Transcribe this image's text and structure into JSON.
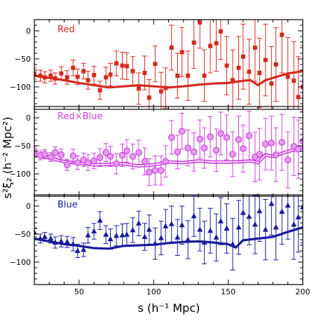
{
  "chart_data": {
    "type": "scatter",
    "xlabel": "s (h⁻¹ Mpc)",
    "ylabel": "s²ξ₂ (h⁻² Mpc²)",
    "xlim": [
      20,
      200
    ],
    "x_ticks": [
      50,
      100,
      150,
      200
    ],
    "panels": [
      {
        "label": "Red",
        "color": "#d42a1e",
        "marker": "square",
        "ylim": [
          -140,
          20
        ],
        "y_ticks": [
          0,
          -50,
          -100
        ],
        "model_style": "thick",
        "model": [
          [
            20,
            -80
          ],
          [
            30,
            -84
          ],
          [
            40,
            -88
          ],
          [
            50,
            -93
          ],
          [
            60,
            -97
          ],
          [
            70,
            -101
          ],
          [
            80,
            -99
          ],
          [
            90,
            -97
          ],
          [
            100,
            -99
          ],
          [
            110,
            -101
          ],
          [
            120,
            -99
          ],
          [
            130,
            -96
          ],
          [
            140,
            -94
          ],
          [
            150,
            -93
          ],
          [
            160,
            -89
          ],
          [
            165,
            -88
          ],
          [
            170,
            -97
          ],
          [
            175,
            -88
          ],
          [
            180,
            -84
          ],
          [
            190,
            -76
          ],
          [
            200,
            -72
          ]
        ],
        "points": [
          [
            20,
            -76,
            10
          ],
          [
            24,
            -80,
            10
          ],
          [
            27,
            -83,
            10
          ],
          [
            31,
            -80,
            10
          ],
          [
            34,
            -85,
            10
          ],
          [
            38,
            -76,
            12
          ],
          [
            42,
            -83,
            12
          ],
          [
            46,
            -66,
            14
          ],
          [
            49,
            -82,
            14
          ],
          [
            53,
            -72,
            14
          ],
          [
            56,
            -88,
            16
          ],
          [
            60,
            -79,
            16
          ],
          [
            64,
            -106,
            16
          ],
          [
            68,
            -83,
            18
          ],
          [
            71,
            -78,
            20
          ],
          [
            75,
            -58,
            22
          ],
          [
            79,
            -62,
            24
          ],
          [
            82,
            -63,
            24
          ],
          [
            86,
            -72,
            26
          ],
          [
            90,
            -103,
            28
          ],
          [
            94,
            -75,
            30
          ],
          [
            97,
            -119,
            32
          ],
          [
            101,
            -59,
            32
          ],
          [
            105,
            -108,
            34
          ],
          [
            108,
            -102,
            36
          ],
          [
            112,
            -30,
            40
          ],
          [
            116,
            -80,
            40
          ],
          [
            119,
            -38,
            44
          ],
          [
            123,
            -80,
            44
          ],
          [
            127,
            -21,
            46
          ],
          [
            131,
            15,
            46
          ],
          [
            134,
            -80,
            46
          ],
          [
            138,
            -27,
            48
          ],
          [
            142,
            -22,
            50
          ],
          [
            145,
            -1,
            50
          ],
          [
            149,
            -62,
            52
          ],
          [
            153,
            -88,
            54
          ],
          [
            157,
            -66,
            56
          ],
          [
            160,
            -46,
            58
          ],
          [
            164,
            -73,
            58
          ],
          [
            168,
            -30,
            60
          ],
          [
            171,
            -75,
            62
          ],
          [
            175,
            -52,
            64
          ],
          [
            179,
            -94,
            66
          ],
          [
            182,
            -60,
            66
          ],
          [
            186,
            -7,
            68
          ],
          [
            190,
            -82,
            70
          ],
          [
            194,
            -89,
            70
          ],
          [
            197,
            -118,
            72
          ],
          [
            200,
            -100,
            74
          ]
        ]
      },
      {
        "label": "Red×Blue",
        "color": "#cc44dd",
        "marker": "circle",
        "ylim": [
          -140,
          20
        ],
        "y_ticks": [
          0,
          -50,
          -100
        ],
        "model_style": "double",
        "model": [
          [
            20,
            -65
          ],
          [
            30,
            -72
          ],
          [
            40,
            -78
          ],
          [
            50,
            -81
          ],
          [
            60,
            -84
          ],
          [
            70,
            -83
          ],
          [
            80,
            -82
          ],
          [
            90,
            -86
          ],
          [
            100,
            -84
          ],
          [
            110,
            -79
          ],
          [
            120,
            -80
          ],
          [
            130,
            -77
          ],
          [
            140,
            -79
          ],
          [
            150,
            -79
          ],
          [
            160,
            -78
          ],
          [
            165,
            -77
          ],
          [
            170,
            -80
          ],
          [
            175,
            -66
          ],
          [
            180,
            -69
          ],
          [
            190,
            -60
          ],
          [
            200,
            -54
          ]
        ],
        "points": [
          [
            20,
            -60,
            8
          ],
          [
            24,
            -67,
            8
          ],
          [
            27,
            -65,
            8
          ],
          [
            31,
            -70,
            8
          ],
          [
            34,
            -62,
            10
          ],
          [
            38,
            -66,
            10
          ],
          [
            42,
            -84,
            10
          ],
          [
            46,
            -68,
            12
          ],
          [
            49,
            -80,
            12
          ],
          [
            53,
            -75,
            12
          ],
          [
            56,
            -80,
            14
          ],
          [
            60,
            -77,
            14
          ],
          [
            64,
            -71,
            16
          ],
          [
            68,
            -62,
            16
          ],
          [
            71,
            -69,
            18
          ],
          [
            75,
            -82,
            18
          ],
          [
            79,
            -67,
            20
          ],
          [
            82,
            -59,
            20
          ],
          [
            86,
            -69,
            22
          ],
          [
            90,
            -62,
            22
          ],
          [
            94,
            -78,
            24
          ],
          [
            97,
            -97,
            24
          ],
          [
            101,
            -94,
            26
          ],
          [
            105,
            -94,
            26
          ],
          [
            108,
            -78,
            28
          ],
          [
            112,
            -35,
            30
          ],
          [
            116,
            -61,
            30
          ],
          [
            119,
            -24,
            32
          ],
          [
            123,
            -54,
            32
          ],
          [
            127,
            -61,
            34
          ],
          [
            131,
            -38,
            34
          ],
          [
            134,
            -54,
            36
          ],
          [
            138,
            -34,
            36
          ],
          [
            142,
            -58,
            38
          ],
          [
            145,
            -28,
            38
          ],
          [
            149,
            -35,
            40
          ],
          [
            153,
            -65,
            40
          ],
          [
            157,
            -39,
            42
          ],
          [
            160,
            -55,
            42
          ],
          [
            164,
            -32,
            44
          ],
          [
            168,
            -70,
            44
          ],
          [
            171,
            -65,
            46
          ],
          [
            175,
            -47,
            46
          ],
          [
            179,
            -45,
            48
          ],
          [
            182,
            -66,
            48
          ],
          [
            186,
            -44,
            50
          ],
          [
            190,
            -75,
            50
          ],
          [
            194,
            -51,
            52
          ],
          [
            197,
            -56,
            52
          ],
          [
            200,
            -42,
            54
          ]
        ]
      },
      {
        "label": "Blue",
        "color": "#1a1a9c",
        "marker": "triangle",
        "ylim": [
          -140,
          20
        ],
        "y_ticks": [
          0,
          -50,
          -100
        ],
        "model_style": "thick",
        "model": [
          [
            20,
            -58
          ],
          [
            30,
            -63
          ],
          [
            40,
            -68
          ],
          [
            50,
            -71
          ],
          [
            60,
            -75
          ],
          [
            70,
            -76
          ],
          [
            80,
            -71
          ],
          [
            90,
            -70
          ],
          [
            100,
            -69
          ],
          [
            110,
            -66
          ],
          [
            120,
            -64
          ],
          [
            130,
            -63
          ],
          [
            140,
            -65
          ],
          [
            150,
            -68
          ],
          [
            155,
            -74
          ],
          [
            160,
            -61
          ],
          [
            170,
            -58
          ],
          [
            180,
            -55
          ],
          [
            190,
            -46
          ],
          [
            200,
            -38
          ]
        ],
        "points": [
          [
            20,
            -47,
            8
          ],
          [
            24,
            -58,
            8
          ],
          [
            27,
            -55,
            8
          ],
          [
            31,
            -58,
            8
          ],
          [
            34,
            -65,
            10
          ],
          [
            38,
            -63,
            10
          ],
          [
            42,
            -64,
            10
          ],
          [
            46,
            -68,
            12
          ],
          [
            49,
            -80,
            12
          ],
          [
            53,
            -78,
            12
          ],
          [
            56,
            -52,
            14
          ],
          [
            60,
            -45,
            14
          ],
          [
            64,
            -26,
            16
          ],
          [
            68,
            -51,
            16
          ],
          [
            71,
            -59,
            18
          ],
          [
            75,
            -53,
            18
          ],
          [
            79,
            -52,
            20
          ],
          [
            82,
            -51,
            20
          ],
          [
            86,
            -43,
            22
          ],
          [
            90,
            -31,
            22
          ],
          [
            94,
            -55,
            24
          ],
          [
            97,
            -42,
            26
          ],
          [
            101,
            -67,
            28
          ],
          [
            105,
            -57,
            30
          ],
          [
            108,
            -36,
            30
          ],
          [
            112,
            -32,
            32
          ],
          [
            116,
            -56,
            32
          ],
          [
            119,
            -34,
            34
          ],
          [
            123,
            -60,
            34
          ],
          [
            127,
            -18,
            36
          ],
          [
            131,
            -42,
            38
          ],
          [
            134,
            -65,
            38
          ],
          [
            138,
            -44,
            40
          ],
          [
            142,
            -56,
            42
          ],
          [
            145,
            -27,
            42
          ],
          [
            149,
            -40,
            44
          ],
          [
            153,
            -68,
            46
          ],
          [
            157,
            -38,
            48
          ],
          [
            160,
            -12,
            50
          ],
          [
            164,
            -19,
            50
          ],
          [
            168,
            -33,
            52
          ],
          [
            171,
            -9,
            54
          ],
          [
            175,
            -42,
            54
          ],
          [
            179,
            4,
            56
          ],
          [
            182,
            -38,
            58
          ],
          [
            186,
            -10,
            58
          ],
          [
            190,
            1,
            60
          ],
          [
            194,
            -33,
            62
          ],
          [
            197,
            -20,
            62
          ],
          [
            200,
            -2,
            64
          ]
        ]
      }
    ]
  }
}
